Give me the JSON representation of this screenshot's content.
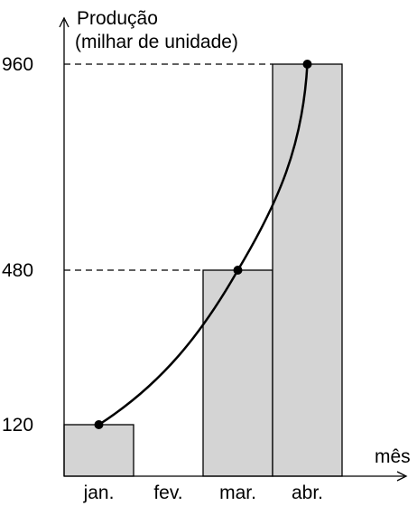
{
  "chart_data": {
    "type": "bar",
    "ylabel_line1": "Produção",
    "ylabel_line2": "(milhar de unidade)",
    "xlabel": "mês",
    "categories": [
      "jan.",
      "fev.",
      "mar.",
      "abr."
    ],
    "values": [
      120,
      null,
      480,
      960
    ],
    "yticks": [
      120,
      480,
      960
    ],
    "ylim": [
      0,
      960
    ],
    "curve_points": [
      {
        "category": "jan.",
        "value": 120
      },
      {
        "category": "mar.",
        "value": 480
      },
      {
        "category": "abr.",
        "value": 960
      }
    ],
    "colors": {
      "bar": "#d4d4d4",
      "line": "#000000"
    }
  }
}
